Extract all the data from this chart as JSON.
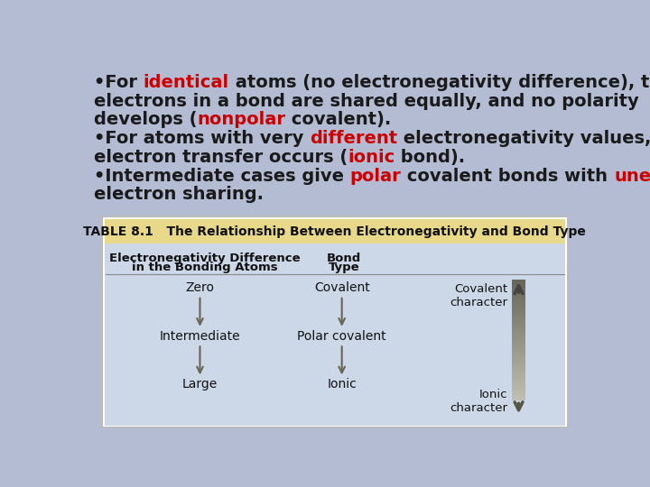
{
  "bg_color": "#b4bcd4",
  "text_color": "#1a1a1a",
  "red_color": "#cc0000",
  "table_bg": "#ccd8e8",
  "table_header_bg": "#e8d88a",
  "table_border": "#999999",
  "arrow_color": "#666655",
  "font_size_main": 14,
  "font_size_table_header": 9.5,
  "font_size_table_body": 10,
  "lines": [
    [
      [
        "•For ",
        "#1a1a1a"
      ],
      [
        "identical",
        "#cc0000"
      ],
      [
        " atoms (no electronegativity difference), the",
        "#1a1a1a"
      ]
    ],
    [
      [
        "electrons in a bond are shared equally, and no polarity",
        "#1a1a1a"
      ]
    ],
    [
      [
        "develops (",
        "#1a1a1a"
      ],
      [
        "nonpolar",
        "#cc0000"
      ],
      [
        " covalent).",
        "#1a1a1a"
      ]
    ],
    [
      [
        "•For atoms with very ",
        "#1a1a1a"
      ],
      [
        "different",
        "#cc0000"
      ],
      [
        " electronegativity values,",
        "#1a1a1a"
      ]
    ],
    [
      [
        "electron transfer occurs (",
        "#1a1a1a"
      ],
      [
        "ionic",
        "#cc0000"
      ],
      [
        " bond).",
        "#1a1a1a"
      ]
    ],
    [
      [
        "•Intermediate cases give ",
        "#1a1a1a"
      ],
      [
        "polar",
        "#cc0000"
      ],
      [
        " covalent bonds with ",
        "#1a1a1a"
      ],
      [
        "unequal",
        "#cc0000"
      ]
    ],
    [
      [
        "electron sharing.",
        "#1a1a1a"
      ]
    ]
  ],
  "table_title": "TABLE 8.1   The Relationship Between Electronegativity and Bond Type",
  "col1_header": [
    "Electronegativity Difference",
    "in the Bonding Atoms"
  ],
  "col2_header": [
    "Bond",
    "Type"
  ],
  "rows": [
    [
      "Zero",
      "Covalent"
    ],
    [
      "Intermediate",
      "Polar covalent"
    ],
    [
      "Large",
      "Ionic"
    ]
  ],
  "cov_char": "Covalent\ncharacter",
  "ion_char": "Ionic\ncharacter"
}
